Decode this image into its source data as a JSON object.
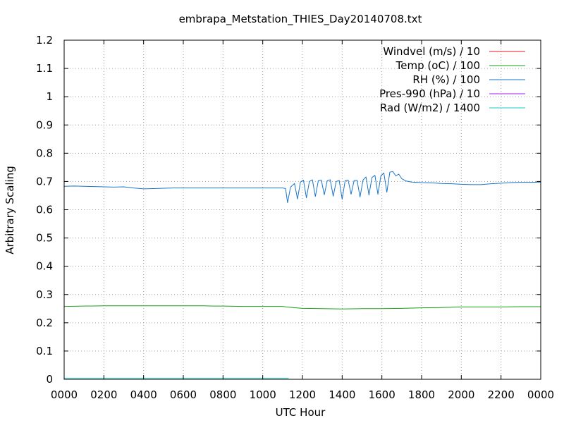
{
  "chart_data": {
    "type": "line",
    "title": "embrapa_Metstation_THIES_Day20140708.txt",
    "xlabel": "UTC Hour",
    "ylabel": "Arbitrary Scaling",
    "xlim": [
      0,
      2400
    ],
    "ylim": [
      0,
      1.2
    ],
    "grid": true,
    "legend_position": "top-right",
    "x_ticks": [
      "0000",
      "0200",
      "0400",
      "0600",
      "0800",
      "1000",
      "1200",
      "1400",
      "1600",
      "1800",
      "2000",
      "2200",
      "0000"
    ],
    "x_tick_values": [
      0,
      200,
      400,
      600,
      800,
      1000,
      1200,
      1400,
      1600,
      1800,
      2000,
      2200,
      2400
    ],
    "y_ticks": [
      "0",
      "0.1",
      "0.2",
      "0.3",
      "0.4",
      "0.5",
      "0.6",
      "0.7",
      "0.8",
      "0.9",
      "1",
      "1.1",
      "1.2"
    ],
    "y_tick_values": [
      0,
      0.1,
      0.2,
      0.3,
      0.4,
      0.5,
      0.6,
      0.7,
      0.8,
      0.9,
      1.0,
      1.1,
      1.2
    ],
    "series": [
      {
        "name": "Windvel (m/s) / 10",
        "color": "#e41a1c",
        "x": [],
        "y": []
      },
      {
        "name": "Temp (oC) / 100",
        "color": "#1a9e1a",
        "x": [
          0,
          100,
          200,
          300,
          400,
          500,
          600,
          700,
          750,
          800,
          900,
          1000,
          1100,
          1120,
          1150,
          1200,
          1300,
          1400,
          1500,
          1600,
          1700,
          1800,
          1900,
          2000,
          2100,
          2200,
          2300,
          2400
        ],
        "y": [
          0.258,
          0.259,
          0.26,
          0.26,
          0.26,
          0.26,
          0.26,
          0.26,
          0.259,
          0.259,
          0.258,
          0.258,
          0.258,
          0.256,
          0.254,
          0.251,
          0.25,
          0.249,
          0.25,
          0.25,
          0.251,
          0.253,
          0.254,
          0.256,
          0.256,
          0.256,
          0.257,
          0.257
        ]
      },
      {
        "name": "RH (%) / 100",
        "color": "#1a74c9",
        "x": [
          0,
          50,
          100,
          150,
          200,
          250,
          300,
          350,
          400,
          450,
          500,
          550,
          600,
          650,
          700,
          750,
          800,
          850,
          900,
          950,
          1000,
          1050,
          1100,
          1115,
          1125,
          1140,
          1160,
          1175,
          1190,
          1205,
          1220,
          1235,
          1250,
          1265,
          1280,
          1295,
          1310,
          1325,
          1340,
          1355,
          1370,
          1385,
          1400,
          1415,
          1430,
          1445,
          1460,
          1475,
          1490,
          1505,
          1520,
          1535,
          1550,
          1565,
          1580,
          1595,
          1610,
          1625,
          1640,
          1655,
          1670,
          1685,
          1700,
          1720,
          1750,
          1800,
          1850,
          1900,
          1950,
          2000,
          2050,
          2100,
          2150,
          2200,
          2250,
          2300,
          2350,
          2400
        ],
        "y": [
          0.683,
          0.684,
          0.683,
          0.682,
          0.681,
          0.68,
          0.681,
          0.677,
          0.674,
          0.675,
          0.676,
          0.677,
          0.677,
          0.677,
          0.677,
          0.677,
          0.677,
          0.677,
          0.677,
          0.677,
          0.677,
          0.677,
          0.677,
          0.675,
          0.625,
          0.68,
          0.693,
          0.638,
          0.698,
          0.705,
          0.642,
          0.7,
          0.706,
          0.647,
          0.703,
          0.705,
          0.653,
          0.703,
          0.706,
          0.648,
          0.7,
          0.704,
          0.637,
          0.703,
          0.705,
          0.655,
          0.703,
          0.704,
          0.645,
          0.705,
          0.716,
          0.652,
          0.714,
          0.722,
          0.655,
          0.72,
          0.73,
          0.662,
          0.733,
          0.735,
          0.72,
          0.726,
          0.71,
          0.702,
          0.698,
          0.696,
          0.695,
          0.693,
          0.692,
          0.69,
          0.689,
          0.689,
          0.692,
          0.694,
          0.696,
          0.697,
          0.697,
          0.698
        ]
      },
      {
        "name": "Pres-990 (hPa) / 10",
        "color": "#a020f0",
        "x": [],
        "y": []
      },
      {
        "name": "Rad (W/m2) / 1400",
        "color": "#1ac9c9",
        "x": [
          0,
          100,
          200,
          300,
          400,
          500,
          600,
          700,
          800,
          900,
          1000,
          1100,
          1130
        ],
        "y": [
          0.004,
          0.004,
          0.004,
          0.004,
          0.004,
          0.004,
          0.004,
          0.004,
          0.004,
          0.004,
          0.004,
          0.004,
          0.004
        ]
      }
    ]
  }
}
